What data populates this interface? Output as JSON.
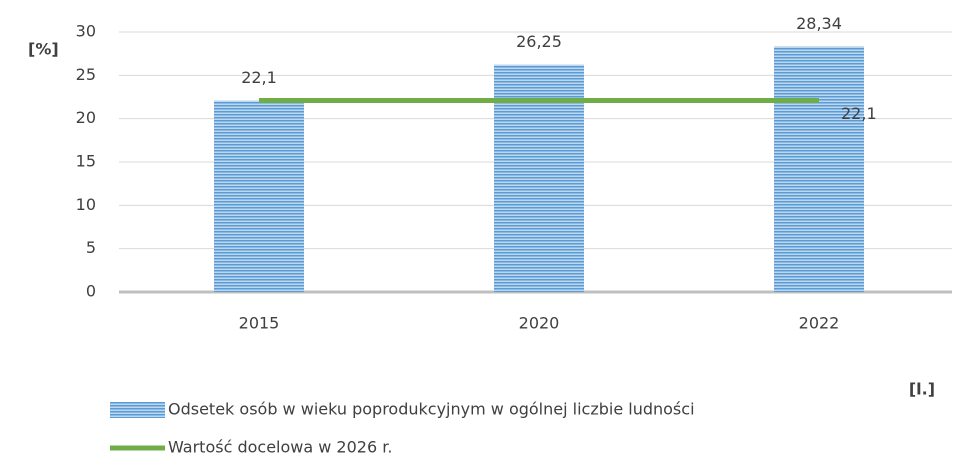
{
  "chart_data": {
    "type": "bar",
    "categories": [
      "2015",
      "2020",
      "2022"
    ],
    "series": [
      {
        "name": "Odsetek osób w wieku poprodukcyjnym w ogólnej liczbie ludności",
        "type": "bar",
        "color": "#5b9bd5",
        "values": [
          22.1,
          26.25,
          28.34
        ],
        "value_labels": [
          "22,1",
          "26,25",
          "28,34"
        ]
      },
      {
        "name": "Wartość docelowa w 2026 r.",
        "type": "line",
        "color": "#70ad47",
        "values": [
          22.1,
          22.1,
          22.1
        ],
        "value_labels": [
          null,
          null,
          "22,1"
        ]
      }
    ],
    "ylabel": "[%]",
    "xlabel": "[l.]",
    "ylim": [
      0,
      30
    ],
    "yticks": [
      0,
      5,
      10,
      15,
      20,
      25,
      30
    ],
    "grid": true,
    "legend": "bottom"
  }
}
